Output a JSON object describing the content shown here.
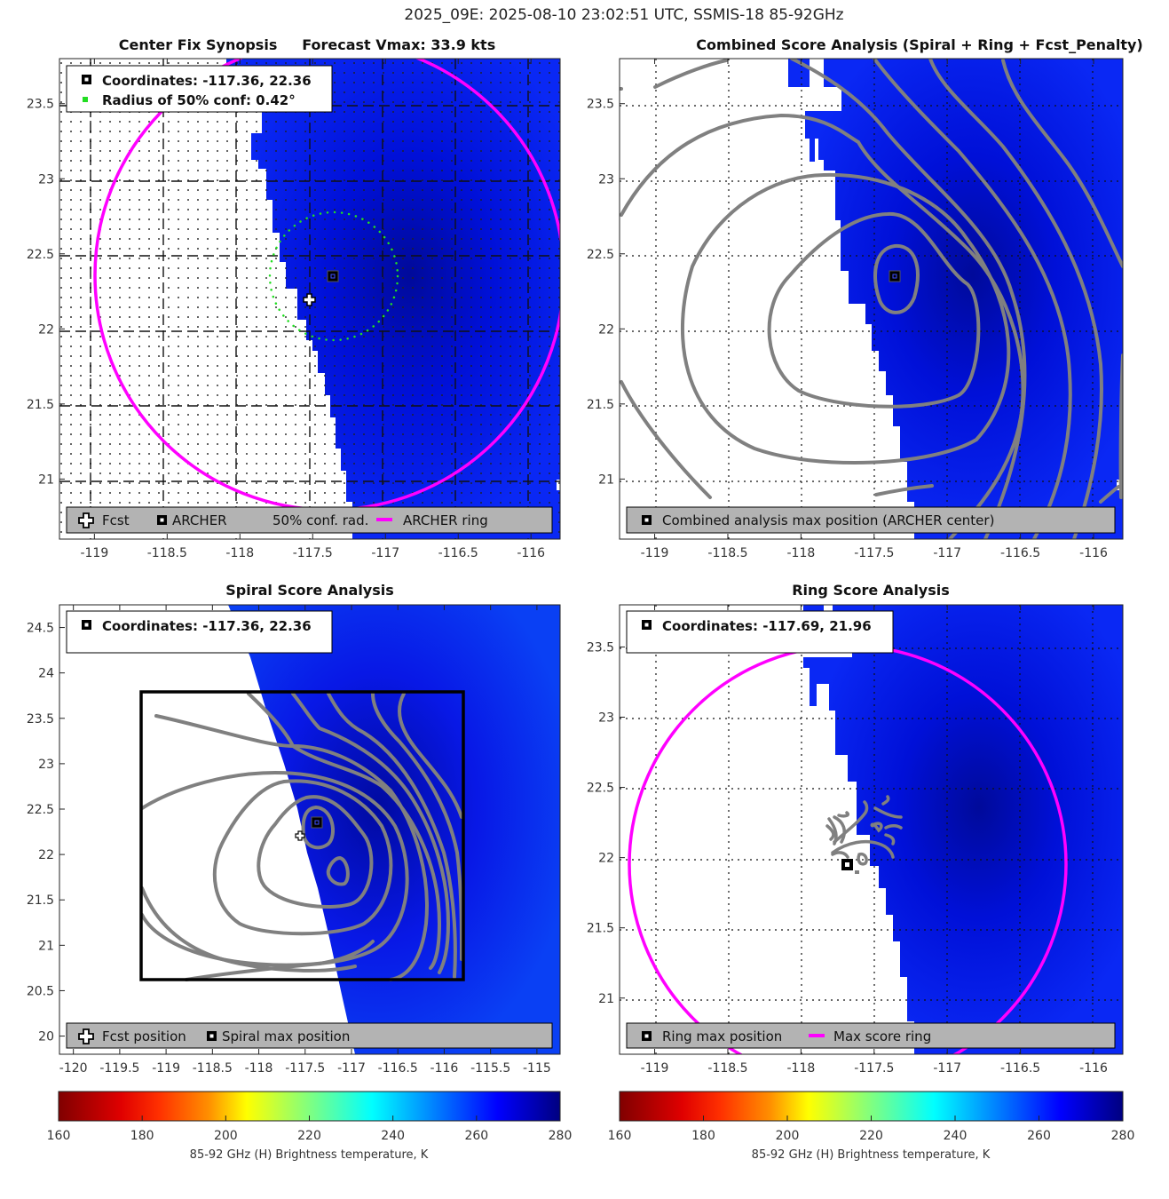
{
  "figure": {
    "suptitle": "2025_09E: 2025-08-10 23:02:51 UTC, SSMIS-18 85-92GHz"
  },
  "colors": {
    "ring": "#ff00ff",
    "conf_dots": "#22dd22",
    "contour": "#808080",
    "legend_bg": "#b3b3b3",
    "field_main": "#0a1ef0",
    "field_dark": "#000a9a"
  },
  "chart_data": [
    {
      "type": "heatmap",
      "id": "center_fix",
      "title": "Center Fix Synopsis     Forecast Vmax: 33.9 kts",
      "xlim": [
        -119.24,
        -115.8
      ],
      "ylim": [
        20.6,
        23.8
      ],
      "xticks": [
        -119,
        -118.5,
        -118,
        -117.5,
        -117,
        -116.5,
        -116
      ],
      "xtick_labels": [
        "-119",
        "-118.5",
        "-118",
        "-117.5",
        "-117",
        "-116.5",
        "-116"
      ],
      "yticks": [
        21,
        21.5,
        22,
        22.5,
        23,
        23.5
      ],
      "ytick_labels": [
        "21",
        "21.5",
        "22",
        "22.5",
        "23",
        "23.5"
      ],
      "grid": "dense-dotted",
      "info_box": [
        {
          "marker": "archer-square",
          "text": "Coordinates: -117.36, 22.36"
        },
        {
          "marker": "green-dot",
          "text": "Radius of 50% conf: 0.42°"
        }
      ],
      "legend": [
        {
          "marker": "fcst-cross",
          "label": "Fcst"
        },
        {
          "marker": "archer-square",
          "label": "ARCHER"
        },
        {
          "marker": "none",
          "label": "50% conf. rad."
        },
        {
          "marker": "magenta-line",
          "label": "ARCHER ring"
        }
      ],
      "legend_position": "bottom",
      "archer_center": [
        -117.36,
        22.36
      ],
      "fcst_position": [
        -117.54,
        22.21
      ],
      "conf_radius_deg": 0.42,
      "archer_ring": {
        "center": [
          -117.36,
          22.36
        ],
        "radius_deg": 1.55
      }
    },
    {
      "type": "heatmap",
      "id": "combined_score",
      "title": "Combined Score Analysis (Spiral + Ring + Fcst_Penalty)",
      "xlim": [
        -119.24,
        -115.8
      ],
      "ylim": [
        20.6,
        23.8
      ],
      "xticks": [
        -119,
        -118.5,
        -118,
        -117.5,
        -117,
        -116.5,
        -116
      ],
      "xtick_labels": [
        "-119",
        "-118.5",
        "-118",
        "-117.5",
        "-117",
        "-116.5",
        "-116"
      ],
      "yticks": [
        21,
        21.5,
        22,
        22.5,
        23,
        23.5
      ],
      "ytick_labels": [
        "21",
        "21.5",
        "22",
        "22.5",
        "23",
        "23.5"
      ],
      "grid": "dotted",
      "legend": [
        {
          "marker": "archer-square",
          "label": "Combined analysis max position (ARCHER center)"
        }
      ],
      "legend_position": "bottom",
      "max_position": [
        -117.36,
        22.36
      ]
    },
    {
      "type": "heatmap",
      "id": "spiral_score",
      "title": "Spiral Score Analysis",
      "xlim": [
        -120.15,
        -114.75
      ],
      "ylim": [
        19.8,
        24.75
      ],
      "xticks": [
        -120,
        -119.5,
        -119,
        -118.5,
        -118,
        -117.5,
        -117,
        -116.5,
        -116,
        -115.5,
        -115
      ],
      "xtick_labels": [
        "-120",
        "-119.5",
        "-119",
        "-118.5",
        "-118",
        "-117.5",
        "-117",
        "-116.5",
        "-116",
        "-115.5",
        "-115"
      ],
      "yticks": [
        20,
        20.5,
        21,
        21.5,
        22,
        22.5,
        23,
        23.5,
        24,
        24.5
      ],
      "ytick_labels": [
        "20",
        "20.5",
        "21",
        "21.5",
        "22",
        "22.5",
        "23",
        "23.5",
        "24",
        "24.5"
      ],
      "grid": "none",
      "info_box": [
        {
          "marker": "archer-square",
          "text": "Coordinates: -117.36, 22.36"
        }
      ],
      "legend": [
        {
          "marker": "fcst-cross",
          "label": "Fcst position"
        },
        {
          "marker": "archer-square",
          "label": "Spiral max position"
        }
      ],
      "legend_position": "bottom",
      "max_position": [
        -117.36,
        22.36
      ],
      "fcst_position": [
        -117.54,
        22.21
      ],
      "search_box": {
        "lon": [
          -119.2,
          -115.7
        ],
        "lat": [
          20.6,
          23.8
        ]
      }
    },
    {
      "type": "heatmap",
      "id": "ring_score",
      "title": "Ring Score Analysis",
      "xlim": [
        -119.24,
        -115.8
      ],
      "ylim": [
        20.6,
        23.8
      ],
      "xticks": [
        -119,
        -118.5,
        -118,
        -117.5,
        -117,
        -116.5,
        -116
      ],
      "xtick_labels": [
        "-119",
        "-118.5",
        "-118",
        "-117.5",
        "-117",
        "-116.5",
        "-116"
      ],
      "yticks": [
        21,
        21.5,
        22,
        22.5,
        23,
        23.5
      ],
      "ytick_labels": [
        "21",
        "21.5",
        "22",
        "22.5",
        "23",
        "23.5"
      ],
      "grid": "dotted",
      "info_box": [
        {
          "marker": "archer-square",
          "text": "Coordinates: -117.69, 21.96"
        }
      ],
      "legend": [
        {
          "marker": "archer-square",
          "label": "Ring max position"
        },
        {
          "marker": "magenta-line",
          "label": "Max score ring"
        }
      ],
      "legend_position": "bottom",
      "max_position": [
        -117.69,
        21.96
      ],
      "max_score_ring": {
        "center": [
          -117.69,
          21.96
        ],
        "radius_deg": 1.5
      }
    }
  ],
  "colorbar": {
    "label": "85-92 GHz (H) Brightness temperature, K",
    "range": [
      160,
      280
    ],
    "ticks": [
      "160",
      "180",
      "200",
      "220",
      "240",
      "260",
      "280"
    ],
    "tick_values": [
      160,
      180,
      200,
      220,
      240,
      260,
      280
    ],
    "colormap": "jet-reversed",
    "stops": [
      "#800000",
      "#ff0000",
      "#ff8000",
      "#ffff00",
      "#80ff80",
      "#00ffff",
      "#0080ff",
      "#0000ff",
      "#000080"
    ]
  }
}
